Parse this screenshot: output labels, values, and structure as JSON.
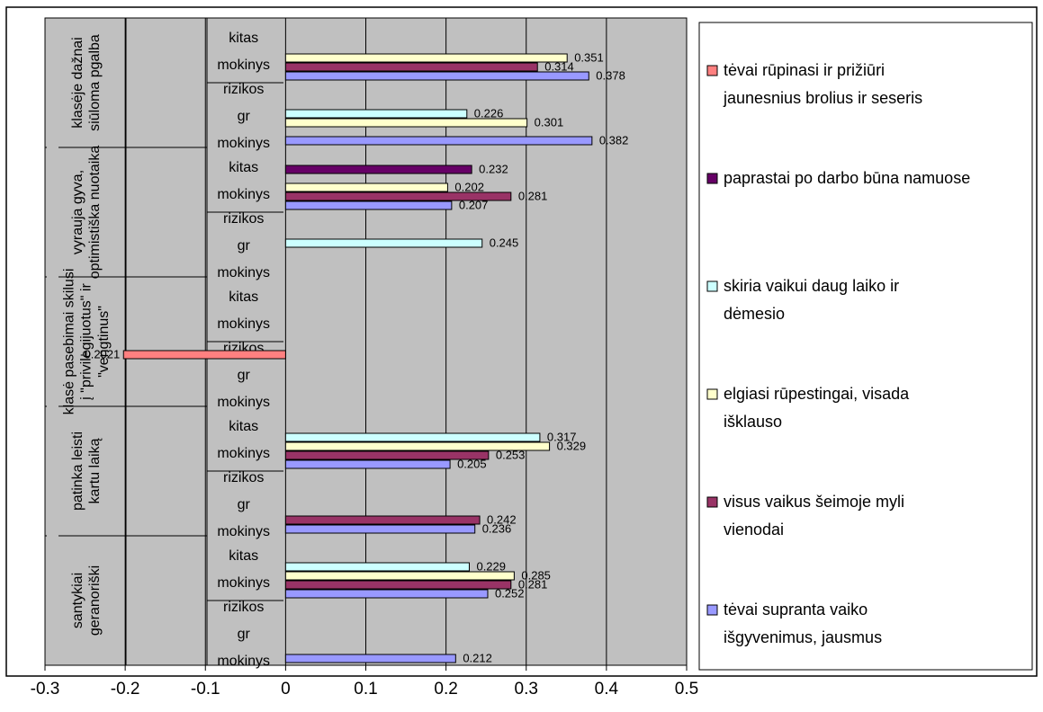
{
  "chart_data": {
    "type": "bar",
    "orientation": "horizontal",
    "xlim": [
      -0.3,
      0.5
    ],
    "x_ticks": [
      "-0.3",
      "-0.2",
      "-0.1",
      "0",
      "0.1",
      "0.2",
      "0.3",
      "0.4",
      "0.5"
    ],
    "grid": "vertical",
    "legend_placement": "right",
    "colors": {
      "plot_bg": "#c0c0c0",
      "frame": "#000000"
    },
    "series": [
      {
        "name": "tėvai rūpinasi ir prižiūri jaunesnius brolius ir seseris",
        "color": "#ff8080"
      },
      {
        "name": "paprastai po darbo būna namuose",
        "color": "#660066"
      },
      {
        "name": "skiria vaikui daug laiko ir dėmesio",
        "color": "#ccffff"
      },
      {
        "name": "elgiasi rūpestingai, visada išklauso",
        "color": "#ffffcc"
      },
      {
        "name": "visus vaikus šeimoje myli vienodai",
        "color": "#993366"
      },
      {
        "name": "tėvai supranta vaiko išgyvenimus, jausmus",
        "color": "#9999ff"
      }
    ],
    "groups": [
      {
        "label": "klasėje dažnai siūloma pgalba",
        "subgroups": [
          {
            "label": "kitas mokinys",
            "values": [
              null,
              null,
              null,
              0.351,
              0.314,
              0.378
            ],
            "data_labels": [
              "",
              "",
              "",
              "0.351",
              "0.314",
              "0.378"
            ]
          },
          {
            "label": "rizikos gr mokinys",
            "values": [
              null,
              null,
              0.226,
              0.301,
              null,
              0.382
            ],
            "data_labels": [
              "",
              "",
              "0.226",
              "0.301",
              "",
              "0.382"
            ]
          }
        ]
      },
      {
        "label": "vyrauja gyva, optimistiška nuotaika",
        "subgroups": [
          {
            "label": "kitas mokinys",
            "values": [
              null,
              0.232,
              null,
              0.202,
              0.281,
              0.207
            ],
            "data_labels": [
              "",
              "0.232",
              "",
              "0.202",
              "0.281",
              "0.207"
            ]
          },
          {
            "label": "rizikos gr mokinys",
            "values": [
              null,
              null,
              0.245,
              null,
              null,
              null
            ],
            "data_labels": [
              "",
              "",
              "0.245",
              "",
              "",
              ""
            ]
          }
        ]
      },
      {
        "label": "klasė pasebimai skilusi į \"privilegijuotus\" ir \"vengtinus\"",
        "subgroups": [
          {
            "label": "kitas mokinys",
            "values": [
              null,
              null,
              null,
              null,
              null,
              null
            ],
            "data_labels": [
              "",
              "",
              "",
              "",
              "",
              ""
            ]
          },
          {
            "label": "rizikos gr mokinys",
            "values": [
              -0.2021,
              null,
              null,
              null,
              null,
              null
            ],
            "data_labels": [
              "-0.2021",
              "",
              "",
              "",
              "",
              ""
            ]
          }
        ]
      },
      {
        "label": "patinka leisti kartu laiką",
        "subgroups": [
          {
            "label": "kitas mokinys",
            "values": [
              null,
              null,
              0.317,
              0.329,
              0.253,
              0.205
            ],
            "data_labels": [
              "",
              "",
              "0.317",
              "0.329",
              "0.253",
              "0.205"
            ]
          },
          {
            "label": "rizikos gr mokinys",
            "values": [
              null,
              null,
              null,
              null,
              0.242,
              0.236
            ],
            "data_labels": [
              "",
              "",
              "",
              "",
              "0.242",
              "0.236"
            ]
          }
        ]
      },
      {
        "label": "santykiai geranoriški",
        "subgroups": [
          {
            "label": "kitas mokinys",
            "values": [
              null,
              null,
              0.229,
              0.285,
              0.281,
              0.252
            ],
            "data_labels": [
              "",
              "",
              "0.229",
              "0.285",
              "0.281",
              "0.252"
            ]
          },
          {
            "label": "rizikos gr mokinys",
            "values": [
              null,
              null,
              null,
              null,
              null,
              0.212
            ],
            "data_labels": [
              "",
              "",
              "",
              "",
              "",
              "0.212"
            ]
          }
        ]
      }
    ]
  }
}
